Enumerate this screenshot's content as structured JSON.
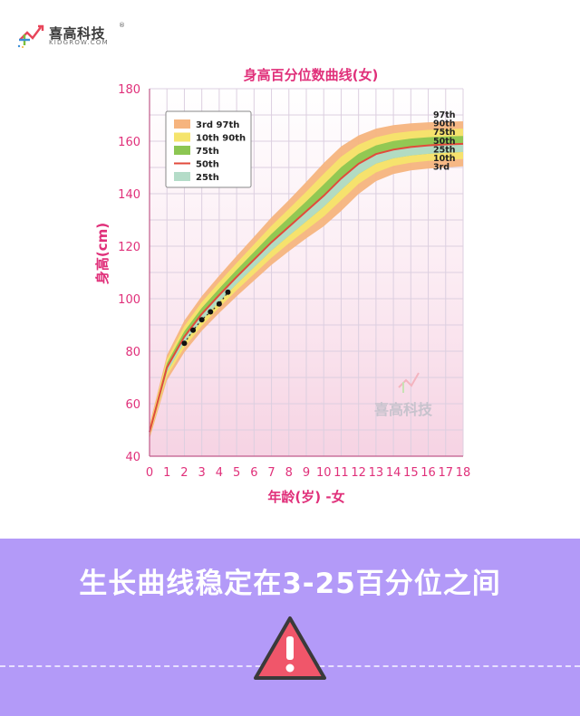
{
  "brand": {
    "name": "喜高科技",
    "sub": "KIDGROW.COM",
    "reg": "®",
    "watermark": "喜高科技"
  },
  "banner": {
    "text": "生长曲线稳定在3-25百分位之间",
    "icon": "warning-triangle-icon",
    "bg_color": "#b39af8",
    "icon_color": "#f0566a"
  },
  "chart_data": {
    "type": "area",
    "title": "身高百分位数曲线(女)",
    "xlabel": "年龄(岁) -女",
    "ylabel": "身高(cm)",
    "xlim": [
      0,
      18
    ],
    "ylim": [
      40,
      180
    ],
    "x_ticks": [
      0,
      1,
      2,
      3,
      4,
      5,
      6,
      7,
      8,
      9,
      10,
      11,
      12,
      13,
      14,
      15,
      16,
      17,
      18
    ],
    "y_ticks": [
      40,
      60,
      80,
      100,
      120,
      140,
      160,
      180
    ],
    "grid": true,
    "legend_position": "top-left",
    "legend": [
      {
        "label": "3rd   97th",
        "color": "#f6b47e"
      },
      {
        "label": "10th  90th",
        "color": "#f5e46c"
      },
      {
        "label": "75th",
        "color": "#8cc652"
      },
      {
        "label": "50th",
        "color": "#e24a3b"
      },
      {
        "label": "25th",
        "color": "#b4dcc8"
      }
    ],
    "curve_labels": [
      "97th",
      "90th",
      "75th",
      "50th",
      "25th",
      "10th",
      "3rd"
    ],
    "x": [
      0,
      1,
      2,
      3,
      4,
      5,
      6,
      7,
      8,
      9,
      10,
      11,
      12,
      13,
      14,
      15,
      16,
      17,
      18
    ],
    "series": [
      {
        "name": "3rd",
        "values": [
          46.6,
          68.9,
          79.6,
          87.8,
          94.6,
          100.9,
          106.9,
          112.9,
          118.1,
          123.0,
          127.6,
          133.4,
          139.9,
          144.8,
          147.5,
          148.9,
          149.6,
          150.0,
          150.4
        ]
      },
      {
        "name": "10th",
        "values": [
          47.5,
          70.4,
          81.4,
          89.7,
          96.7,
          103.2,
          109.4,
          115.6,
          121.1,
          126.2,
          131.3,
          137.5,
          143.8,
          148.1,
          150.6,
          151.8,
          152.5,
          152.9,
          153.2
        ]
      },
      {
        "name": "25th",
        "values": [
          48.2,
          72.0,
          83.3,
          91.8,
          98.9,
          105.6,
          112.0,
          118.4,
          124.0,
          129.5,
          135.0,
          141.4,
          147.5,
          151.5,
          153.5,
          154.6,
          155.2,
          155.6,
          155.9
        ]
      },
      {
        "name": "50th",
        "values": [
          49.2,
          73.8,
          85.5,
          94.2,
          101.4,
          108.3,
          114.9,
          121.5,
          127.4,
          133.3,
          139.2,
          145.8,
          151.4,
          155.1,
          156.8,
          157.8,
          158.4,
          158.8,
          159.0
        ]
      },
      {
        "name": "75th",
        "values": [
          50.0,
          75.5,
          87.6,
          96.5,
          103.9,
          111.0,
          117.8,
          124.7,
          130.9,
          137.1,
          143.5,
          150.1,
          155.2,
          158.4,
          160.1,
          161.0,
          161.5,
          161.8,
          162.0
        ]
      },
      {
        "name": "90th",
        "values": [
          51.0,
          77.0,
          89.6,
          98.7,
          106.3,
          113.6,
          120.7,
          127.8,
          134.2,
          140.8,
          147.6,
          154.1,
          158.7,
          161.5,
          163.0,
          163.8,
          164.3,
          164.6,
          164.8
        ]
      },
      {
        "name": "97th",
        "values": [
          52.0,
          78.5,
          91.7,
          101.0,
          108.8,
          116.3,
          123.6,
          131.0,
          137.6,
          144.5,
          151.7,
          158.0,
          162.2,
          164.8,
          166.1,
          166.8,
          167.2,
          167.4,
          167.6
        ]
      }
    ],
    "child_points": {
      "x": [
        2.0,
        2.5,
        3.0,
        3.5,
        4.0,
        4.5
      ],
      "y": [
        83,
        88,
        92,
        95,
        98,
        102.5
      ]
    }
  }
}
